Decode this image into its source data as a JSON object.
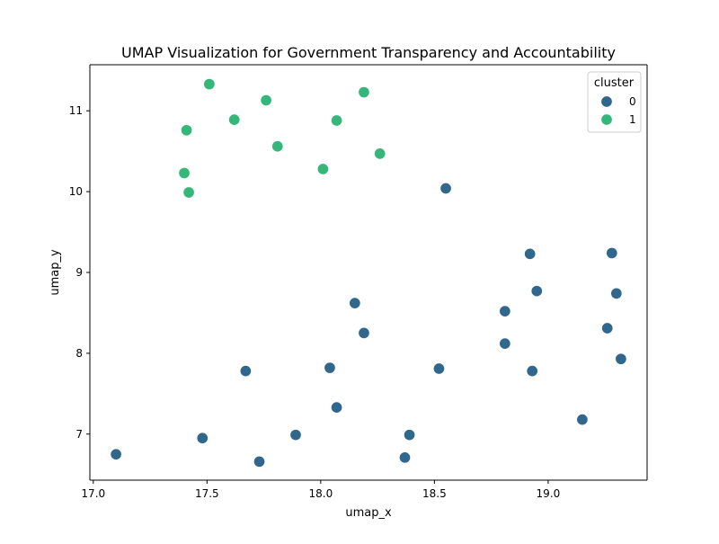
{
  "chart_data": {
    "type": "scatter",
    "title": "UMAP Visualization for Government Transparency and Accountability",
    "xlabel": "umap_x",
    "ylabel": "umap_y",
    "xlim": [
      16.985,
      19.435
    ],
    "ylim": [
      6.43,
      11.57
    ],
    "xticks": [
      {
        "value": 17.0,
        "label": "17.0"
      },
      {
        "value": 17.5,
        "label": "17.5"
      },
      {
        "value": 18.0,
        "label": "18.0"
      },
      {
        "value": 18.5,
        "label": "18.5"
      },
      {
        "value": 19.0,
        "label": "19.0"
      }
    ],
    "yticks": [
      {
        "value": 7,
        "label": "7"
      },
      {
        "value": 8,
        "label": "8"
      },
      {
        "value": 9,
        "label": "9"
      },
      {
        "value": 10,
        "label": "10"
      },
      {
        "value": 11,
        "label": "11"
      }
    ],
    "grid": false,
    "legend": {
      "title": "cluster",
      "placement": "top-right",
      "entries": [
        {
          "label": "0",
          "color": "#30678d"
        },
        {
          "label": "1",
          "color": "#35b779"
        }
      ]
    },
    "series": [
      {
        "name": "0",
        "color": "#30678d",
        "points": [
          {
            "x": 17.1,
            "y": 6.75
          },
          {
            "x": 17.48,
            "y": 6.95
          },
          {
            "x": 17.73,
            "y": 6.66
          },
          {
            "x": 17.89,
            "y": 6.99
          },
          {
            "x": 17.67,
            "y": 7.78
          },
          {
            "x": 18.04,
            "y": 7.82
          },
          {
            "x": 18.07,
            "y": 7.33
          },
          {
            "x": 18.15,
            "y": 8.62
          },
          {
            "x": 18.19,
            "y": 8.25
          },
          {
            "x": 18.37,
            "y": 6.71
          },
          {
            "x": 18.39,
            "y": 6.99
          },
          {
            "x": 18.52,
            "y": 7.81
          },
          {
            "x": 18.55,
            "y": 10.04
          },
          {
            "x": 18.81,
            "y": 8.52
          },
          {
            "x": 18.81,
            "y": 8.12
          },
          {
            "x": 18.92,
            "y": 9.23
          },
          {
            "x": 18.93,
            "y": 7.78
          },
          {
            "x": 18.95,
            "y": 8.77
          },
          {
            "x": 19.15,
            "y": 7.18
          },
          {
            "x": 19.26,
            "y": 8.31
          },
          {
            "x": 19.28,
            "y": 9.24
          },
          {
            "x": 19.3,
            "y": 8.74
          },
          {
            "x": 19.32,
            "y": 7.93
          }
        ]
      },
      {
        "name": "1",
        "color": "#35b779",
        "points": [
          {
            "x": 17.51,
            "y": 11.33
          },
          {
            "x": 17.41,
            "y": 10.76
          },
          {
            "x": 17.4,
            "y": 10.23
          },
          {
            "x": 17.42,
            "y": 9.99
          },
          {
            "x": 17.62,
            "y": 10.89
          },
          {
            "x": 17.76,
            "y": 11.13
          },
          {
            "x": 17.81,
            "y": 10.56
          },
          {
            "x": 18.01,
            "y": 10.28
          },
          {
            "x": 18.07,
            "y": 10.88
          },
          {
            "x": 18.19,
            "y": 11.23
          },
          {
            "x": 18.26,
            "y": 10.47
          }
        ]
      }
    ]
  }
}
